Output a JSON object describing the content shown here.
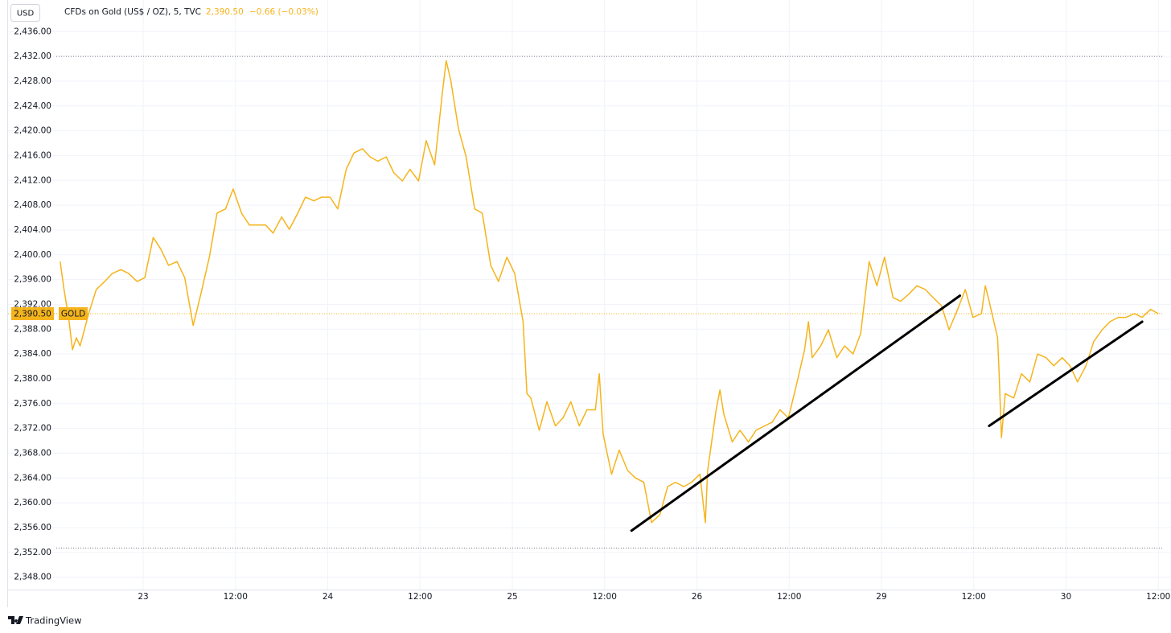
{
  "chart_data": {
    "type": "line",
    "currency": "USD",
    "title": "CFDs on Gold (US$ / OZ), 5, TVC",
    "last_price": {
      "value": 2390.5,
      "label": "2,390.50"
    },
    "change_label": "−0.66 (−0.03%)",
    "brand": "TradingView",
    "x": [
      13.2,
      13.7,
      14.3,
      14.8,
      15.3,
      15.8,
      16.9,
      17.9,
      19.0,
      20.0,
      21.1,
      22.1,
      23.2,
      24.2,
      25.3,
      26.3,
      27.3,
      28.4,
      29.4,
      30.5,
      31.5,
      32.6,
      33.6,
      34.7,
      35.7,
      36.8,
      37.8,
      38.9,
      39.9,
      40.9,
      42.0,
      43.0,
      44.1,
      45.1,
      46.2,
      47.2,
      48.3,
      49.3,
      50.4,
      51.4,
      52.5,
      53.5,
      54.5,
      55.6,
      56.6,
      57.7,
      58.7,
      59.8,
      60.8,
      61.9,
      62.9,
      63.4,
      64.0,
      65.0,
      66.0,
      67.1,
      68.1,
      69.2,
      70.2,
      71.3,
      72.3,
      73.4,
      73.9,
      74.4,
      75.5,
      76.5,
      77.6,
      78.6,
      79.6,
      80.7,
      81.7,
      82.8,
      83.3,
      83.8,
      84.9,
      85.9,
      87.0,
      88.0,
      89.1,
      90.1,
      91.2,
      92.2,
      93.2,
      94.3,
      95.3,
      96.4,
      97.1,
      97.4,
      98.5,
      99.0,
      99.5,
      100.6,
      101.6,
      102.7,
      103.7,
      104.8,
      105.8,
      106.8,
      107.9,
      108.9,
      110.0,
      110.5,
      111.0,
      112.1,
      113.1,
      114.2,
      115.2,
      116.3,
      117.3,
      118.4,
      119.4,
      120.4,
      121.5,
      122.5,
      123.6,
      124.6,
      125.7,
      126.7,
      127.8,
      128.8,
      129.9,
      130.9,
      131.9,
      133.0,
      133.5,
      134.0,
      135.1,
      135.3,
      135.6,
      136.1,
      137.2,
      138.2,
      139.3,
      140.3,
      141.4,
      142.4,
      143.5,
      144.5,
      145.5,
      146.6,
      147.6,
      148.7,
      149.7,
      150.8,
      151.8,
      152.9,
      153.9,
      155.0,
      156.0
    ],
    "series": [
      {
        "name": "GOLD",
        "color": "#f5b41c",
        "values": [
          2398.9,
          2394.4,
          2389.9,
          2384.7,
          2386.6,
          2385.3,
          2390.5,
          2394.4,
          2395.7,
          2397.0,
          2397.6,
          2397.0,
          2395.7,
          2396.3,
          2402.8,
          2400.9,
          2398.3,
          2398.9,
          2396.3,
          2388.6,
          2393.7,
          2399.6,
          2406.7,
          2407.4,
          2410.6,
          2406.7,
          2404.8,
          2404.8,
          2404.8,
          2403.5,
          2406.1,
          2404.1,
          2406.7,
          2409.3,
          2408.7,
          2409.3,
          2409.3,
          2407.4,
          2413.8,
          2416.4,
          2417.1,
          2415.8,
          2415.1,
          2415.8,
          2413.2,
          2411.9,
          2413.8,
          2411.9,
          2418.4,
          2414.5,
          2426.1,
          2431.3,
          2428.1,
          2420.3,
          2415.8,
          2407.4,
          2406.7,
          2398.3,
          2395.7,
          2399.6,
          2397.0,
          2389.2,
          2377.6,
          2376.9,
          2371.7,
          2376.3,
          2372.4,
          2373.7,
          2376.3,
          2372.4,
          2375.0,
          2375.0,
          2380.8,
          2371.1,
          2364.6,
          2368.5,
          2365.2,
          2364.0,
          2363.3,
          2356.8,
          2358.1,
          2362.6,
          2363.3,
          2362.6,
          2363.3,
          2364.6,
          2356.8,
          2365.2,
          2375.0,
          2378.2,
          2374.3,
          2369.8,
          2371.7,
          2369.8,
          2371.7,
          2372.4,
          2373.0,
          2375.0,
          2373.7,
          2378.8,
          2384.7,
          2389.2,
          2383.4,
          2385.3,
          2387.9,
          2383.4,
          2385.3,
          2384.0,
          2387.3,
          2398.9,
          2395.0,
          2399.6,
          2393.1,
          2392.5,
          2393.7,
          2395.0,
          2394.4,
          2393.1,
          2391.8,
          2387.9,
          2391.2,
          2394.4,
          2389.9,
          2390.5,
          2395.0,
          2392.5,
          2386.6,
          2380.8,
          2370.5,
          2377.6,
          2376.9,
          2380.8,
          2379.5,
          2384.0,
          2383.4,
          2382.1,
          2383.4,
          2382.1,
          2379.5,
          2382.1,
          2386.0,
          2387.9,
          2389.2,
          2389.9,
          2389.9,
          2390.5,
          2389.9,
          2391.2,
          2390.5
        ]
      }
    ],
    "trendlines": [
      {
        "color": "#000000",
        "x": [
          87.5,
          130.2
        ],
        "y": [
          2355.5,
          2393.4
        ]
      },
      {
        "color": "#000000",
        "x": [
          134.0,
          153.9
        ],
        "y": [
          2372.4,
          2389.2
        ]
      }
    ],
    "high_low_lines": [
      2432,
      2352.7
    ],
    "xlim": [
      12.7,
      156.5
    ],
    "xticks": [
      {
        "value": 24,
        "label": "23"
      },
      {
        "value": 36,
        "label": "12:00"
      },
      {
        "value": 48,
        "label": "24"
      },
      {
        "value": 60,
        "label": "12:00"
      },
      {
        "value": 72,
        "label": "25"
      },
      {
        "value": 84,
        "label": "12:00"
      },
      {
        "value": 96,
        "label": "26"
      },
      {
        "value": 108,
        "label": "12:00"
      },
      {
        "value": 120,
        "label": "29"
      },
      {
        "value": 132,
        "label": "12:00"
      },
      {
        "value": 144,
        "label": "30"
      },
      {
        "value": 156,
        "label": "12:00"
      }
    ],
    "ylim": [
      2346.0,
      2437.2
    ],
    "yticks": [
      {
        "value": 2348,
        "label": "2,348.00"
      },
      {
        "value": 2352,
        "label": "2,352.00"
      },
      {
        "value": 2356,
        "label": "2,356.00"
      },
      {
        "value": 2360,
        "label": "2,360.00"
      },
      {
        "value": 2364,
        "label": "2,364.00"
      },
      {
        "value": 2368,
        "label": "2,368.00"
      },
      {
        "value": 2372,
        "label": "2,372.00"
      },
      {
        "value": 2376,
        "label": "2,376.00"
      },
      {
        "value": 2380,
        "label": "2,380.00"
      },
      {
        "value": 2384,
        "label": "2,384.00"
      },
      {
        "value": 2388,
        "label": "2,388.00"
      },
      {
        "value": 2392,
        "label": "2,392.00"
      },
      {
        "value": 2396,
        "label": "2,396.00"
      },
      {
        "value": 2400,
        "label": "2,400.00"
      },
      {
        "value": 2404,
        "label": "2,404.00"
      },
      {
        "value": 2408,
        "label": "2,408.00"
      },
      {
        "value": 2412,
        "label": "2,412.00"
      },
      {
        "value": 2416,
        "label": "2,416.00"
      },
      {
        "value": 2420,
        "label": "2,420.00"
      },
      {
        "value": 2424,
        "label": "2,424.00"
      },
      {
        "value": 2428,
        "label": "2,428.00"
      },
      {
        "value": 2432,
        "label": "2,432.00"
      },
      {
        "value": 2436,
        "label": "2,436.00"
      }
    ],
    "grid": true
  }
}
